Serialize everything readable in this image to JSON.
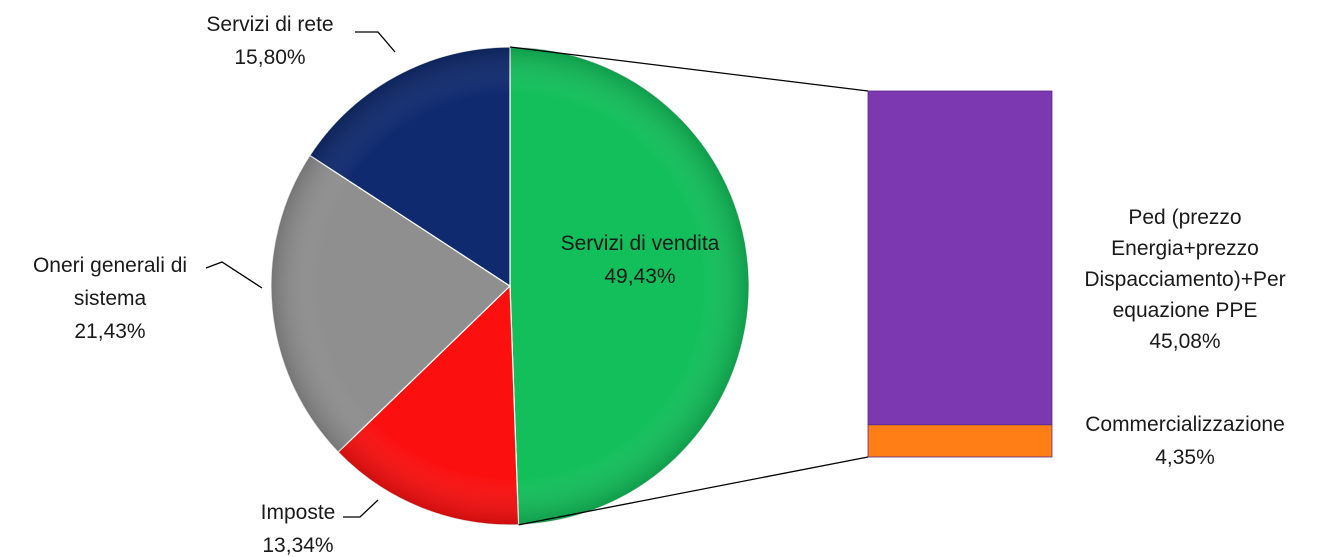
{
  "chart_data": {
    "type": "pie",
    "variant": "bar-of-pie",
    "slices": [
      {
        "label": "Servizi di vendita",
        "value": 49.43,
        "value_label": "49,43%",
        "color": "#12bf5a"
      },
      {
        "label": "Imposte",
        "value": 13.34,
        "value_label": "13,34%",
        "color": "#fb0f0f"
      },
      {
        "label": "Oneri generali di sistema",
        "value": 21.43,
        "value_label": "21,43%",
        "color": "#8f8f8f"
      },
      {
        "label": "Servizi di rete",
        "value": 15.8,
        "value_label": "15,80%",
        "color": "#0f2a6e"
      }
    ],
    "breakdown_of": "Servizi di vendita",
    "breakdown": [
      {
        "label": "Ped (prezzo Energia+prezzo Dispacciamento)+Per equazione PPE",
        "value": 45.08,
        "value_label": "45,08%",
        "color": "#7b38b0"
      },
      {
        "label": "Commercializzazione",
        "value": 4.35,
        "value_label": "4,35%",
        "color": "#ff7f16"
      }
    ],
    "legend": "none"
  }
}
